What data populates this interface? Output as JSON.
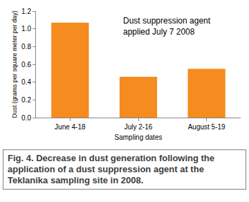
{
  "chart_data": {
    "type": "bar",
    "x_label": "Sampling dates",
    "y_label": "Dust (grams per square meter per day)",
    "annotation": [
      "Dust suppression agent",
      "applied July 7 2008"
    ],
    "caption": "Fig. 4. Decrease in dust generation following the application of a dust suppression agent at the Teklanika sampling site in 2008.",
    "categories": [
      "June 4-18",
      "July 2-16",
      "August 5-19"
    ],
    "values": [
      1.07,
      0.46,
      0.55
    ],
    "color": "#f68b1f",
    "ylim": [
      0,
      1.2
    ],
    "yticks": [
      {
        "value": 0,
        "label": "0.0"
      },
      0.2,
      0.4,
      0.6,
      0.8,
      {
        "value": 1,
        "label": "1.0"
      },
      1.2
    ],
    "grid": false
  }
}
